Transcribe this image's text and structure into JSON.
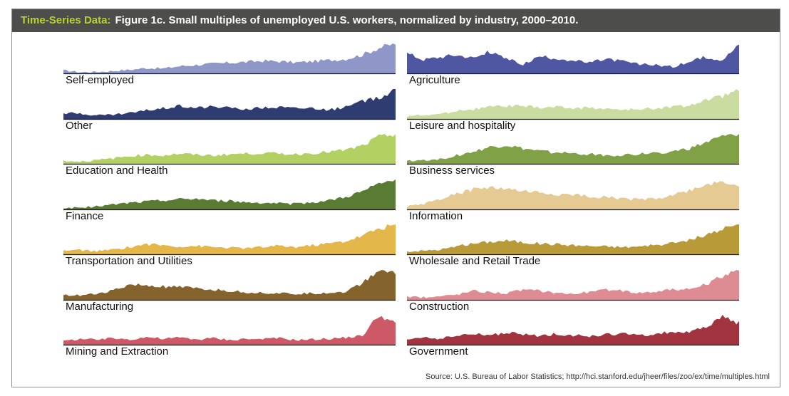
{
  "header": {
    "tag": "Time-Series Data:",
    "title": "Figure 1c. Small multiples of unemployed U.S. workers, normalized by industry, 2000–2010."
  },
  "source": "Source: U.S. Bureau of Labor Statistics; http://hci.stanford.edu/jheer/files/zoo/ex/time/multiples.html",
  "chart_data": {
    "type": "area",
    "x_range": [
      2000,
      2010
    ],
    "x_unit": "year",
    "normalized": true,
    "ylim": [
      0,
      1
    ],
    "series_sample_points": 21,
    "series": [
      {
        "name": "Self-employed",
        "color": "#8e97c7",
        "values": [
          0.1,
          0.04,
          0.05,
          0.08,
          0.12,
          0.18,
          0.16,
          0.24,
          0.28,
          0.32,
          0.35,
          0.38,
          0.42,
          0.4,
          0.36,
          0.4,
          0.44,
          0.48,
          0.62,
          0.85,
          1.0
        ]
      },
      {
        "name": "Agriculture",
        "color": "#4f57a3",
        "values": [
          0.68,
          0.46,
          0.55,
          0.62,
          0.52,
          0.72,
          0.48,
          0.3,
          0.56,
          0.5,
          0.42,
          0.35,
          0.48,
          0.4,
          0.3,
          0.28,
          0.22,
          0.38,
          0.55,
          0.46,
          0.95
        ]
      },
      {
        "name": "Other",
        "color": "#2e3c71",
        "values": [
          0.2,
          0.18,
          0.12,
          0.14,
          0.2,
          0.28,
          0.36,
          0.44,
          0.38,
          0.42,
          0.36,
          0.34,
          0.38,
          0.4,
          0.36,
          0.38,
          0.3,
          0.4,
          0.58,
          0.7,
          1.0
        ]
      },
      {
        "name": "Leisure and hospitality",
        "color": "#cadca0",
        "values": [
          0.1,
          0.12,
          0.16,
          0.28,
          0.32,
          0.4,
          0.44,
          0.42,
          0.38,
          0.4,
          0.36,
          0.38,
          0.34,
          0.3,
          0.32,
          0.36,
          0.4,
          0.46,
          0.62,
          0.75,
          1.0
        ]
      },
      {
        "name": "Education and Health",
        "color": "#b3d163",
        "values": [
          0.1,
          0.08,
          0.12,
          0.18,
          0.26,
          0.3,
          0.28,
          0.34,
          0.3,
          0.28,
          0.32,
          0.34,
          0.36,
          0.34,
          0.32,
          0.36,
          0.4,
          0.46,
          0.6,
          0.9,
          1.0
        ]
      },
      {
        "name": "Business services",
        "color": "#80a145",
        "values": [
          0.1,
          0.12,
          0.16,
          0.28,
          0.4,
          0.55,
          0.62,
          0.5,
          0.42,
          0.38,
          0.34,
          0.32,
          0.28,
          0.3,
          0.32,
          0.36,
          0.42,
          0.5,
          0.7,
          0.9,
          1.0
        ]
      },
      {
        "name": "Finance",
        "color": "#5a7b33",
        "values": [
          0.04,
          0.06,
          0.1,
          0.16,
          0.22,
          0.26,
          0.3,
          0.34,
          0.36,
          0.3,
          0.28,
          0.24,
          0.22,
          0.2,
          0.18,
          0.24,
          0.3,
          0.42,
          0.6,
          0.85,
          1.0
        ]
      },
      {
        "name": "Information",
        "color": "#e5cb93",
        "values": [
          0.1,
          0.18,
          0.36,
          0.52,
          0.66,
          0.72,
          0.68,
          0.6,
          0.56,
          0.5,
          0.48,
          0.44,
          0.4,
          0.36,
          0.34,
          0.36,
          0.48,
          0.62,
          0.82,
          0.92,
          0.8
        ]
      },
      {
        "name": "Transportation and Utilities",
        "color": "#e4b74b",
        "values": [
          0.12,
          0.14,
          0.1,
          0.16,
          0.24,
          0.34,
          0.3,
          0.26,
          0.28,
          0.24,
          0.22,
          0.2,
          0.24,
          0.28,
          0.24,
          0.3,
          0.36,
          0.44,
          0.62,
          0.86,
          1.0
        ]
      },
      {
        "name": "Wholesale and Retail Trade",
        "color": "#b89a38",
        "values": [
          0.1,
          0.12,
          0.16,
          0.26,
          0.36,
          0.42,
          0.46,
          0.4,
          0.36,
          0.34,
          0.3,
          0.28,
          0.26,
          0.24,
          0.26,
          0.3,
          0.36,
          0.48,
          0.64,
          0.82,
          1.0
        ]
      },
      {
        "name": "Manufacturing",
        "color": "#84632c",
        "values": [
          0.18,
          0.14,
          0.2,
          0.32,
          0.5,
          0.48,
          0.44,
          0.42,
          0.38,
          0.34,
          0.3,
          0.26,
          0.24,
          0.22,
          0.2,
          0.22,
          0.24,
          0.28,
          0.56,
          1.0,
          0.92
        ]
      },
      {
        "name": "Construction",
        "color": "#de8c93",
        "values": [
          0.1,
          0.08,
          0.12,
          0.18,
          0.3,
          0.26,
          0.22,
          0.34,
          0.3,
          0.24,
          0.2,
          0.26,
          0.34,
          0.3,
          0.24,
          0.28,
          0.36,
          0.34,
          0.52,
          0.78,
          1.0
        ]
      },
      {
        "name": "Mining and Extraction",
        "color": "#cd5966",
        "values": [
          0.12,
          0.2,
          0.16,
          0.22,
          0.18,
          0.26,
          0.2,
          0.24,
          0.18,
          0.22,
          0.16,
          0.2,
          0.18,
          0.22,
          0.16,
          0.18,
          0.2,
          0.24,
          0.3,
          1.0,
          0.7
        ]
      },
      {
        "name": "Government",
        "color": "#a2343f",
        "values": [
          0.18,
          0.26,
          0.2,
          0.3,
          0.36,
          0.32,
          0.4,
          0.34,
          0.3,
          0.36,
          0.32,
          0.28,
          0.34,
          0.38,
          0.3,
          0.36,
          0.44,
          0.4,
          0.6,
          0.94,
          0.72
        ]
      }
    ]
  }
}
